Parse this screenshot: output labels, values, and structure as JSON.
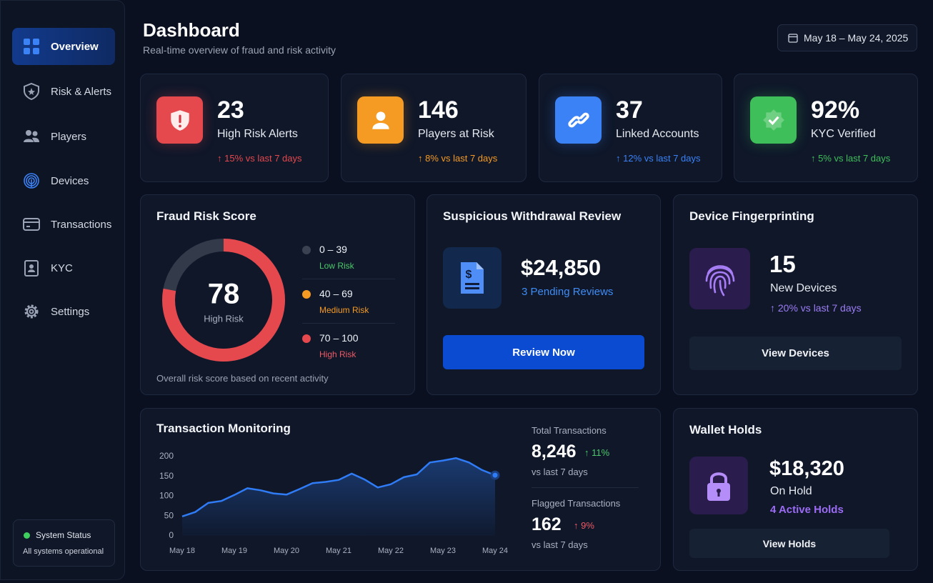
{
  "sidebar": {
    "nav": [
      "Overview",
      "Risk & Alerts",
      "Players",
      "Devices",
      "Transactions",
      "KYC",
      "Settings"
    ],
    "status": {
      "title": "System Status",
      "text": "All systems operational"
    }
  },
  "header": {
    "title": "Dashboard",
    "subtitle": "Real-time overview of fraud and risk activity",
    "date_range": "May 18 – May 24, 2025"
  },
  "stats": [
    {
      "value": "23",
      "label": "High Risk Alerts",
      "change": "↑ 15% vs last 7 days",
      "color": "#e5484d"
    },
    {
      "value": "146",
      "label": "Players at Risk",
      "change": "↑ 8% vs last 7 days",
      "color": "#f59a23"
    },
    {
      "value": "37",
      "label": "Linked Accounts",
      "change": "↑ 12% vs last 7 days",
      "color": "#3b82f6"
    },
    {
      "value": "92%",
      "label": "KYC Verified",
      "change": "↑ 5% vs last 7 days",
      "color": "#3fbf5a"
    }
  ],
  "risk_score": {
    "title": "Fraud Risk Score",
    "value": 78,
    "value_label": "High Risk",
    "scale": [
      0,
      100
    ],
    "color": "#e5484d",
    "bands": [
      {
        "range": "0 – 39",
        "label": "Low Risk",
        "color": "#3a4252",
        "text_color": "#4cc96a"
      },
      {
        "range": "40 – 69",
        "label": "Medium Risk",
        "color": "#f59a23",
        "text_color": "#f59a23"
      },
      {
        "range": "70 – 100",
        "label": "High Risk",
        "color": "#e5484d",
        "text_color": "#ef5a66"
      }
    ],
    "footer": "Overall risk score based on recent activity"
  },
  "withdrawal": {
    "title": "Suspicious Withdrawal Review",
    "amount": "$24,850",
    "pending": "3 Pending Reviews",
    "button": "Review Now"
  },
  "devices": {
    "title": "Device Fingerprinting",
    "value": "15",
    "label": "New Devices",
    "change": "↑ 20% vs last 7 days",
    "button": "View Devices"
  },
  "transactions": {
    "title": "Transaction Monitoring",
    "total": {
      "label": "Total Transactions",
      "value": "8,246",
      "change": "↑ 11%",
      "sub": "vs last 7 days"
    },
    "flagged": {
      "label": "Flagged Transactions",
      "value": "162",
      "change": "↑ 9%",
      "sub": "vs last 7 days"
    }
  },
  "wallet": {
    "title": "Wallet Holds",
    "amount": "$18,320",
    "label": "On Hold",
    "holds": "4 Active Holds",
    "button": "View Holds"
  },
  "chart_data": {
    "type": "line",
    "x": [
      0,
      0.25,
      0.5,
      0.75,
      1,
      1.25,
      1.5,
      1.75,
      2,
      2.25,
      2.5,
      2.75,
      3,
      3.25,
      3.5,
      3.75,
      4,
      4.25,
      4.5,
      4.75,
      5,
      5.25,
      5.5,
      5.75,
      6
    ],
    "values": [
      49,
      60,
      83,
      88,
      103,
      120,
      115,
      107,
      104,
      118,
      133,
      136,
      141,
      157,
      142,
      122,
      130,
      148,
      155,
      185,
      190,
      196,
      185,
      166,
      153
    ],
    "color": "#2f7cf6",
    "xlim": [
      0,
      6
    ],
    "xticks": [
      {
        "value": 0,
        "label": "May 18"
      },
      {
        "value": 1,
        "label": "May 19"
      },
      {
        "value": 2,
        "label": "May 20"
      },
      {
        "value": 3,
        "label": "May 21"
      },
      {
        "value": 4,
        "label": "May 22"
      },
      {
        "value": 5,
        "label": "May 23"
      },
      {
        "value": 6,
        "label": "May 24"
      }
    ],
    "ylim": [
      0,
      200
    ],
    "yticks": [
      0,
      50,
      100,
      150,
      200
    ],
    "grid": false
  }
}
